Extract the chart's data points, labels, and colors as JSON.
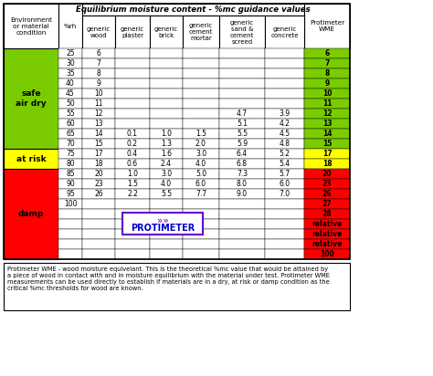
{
  "title": "Equilibrium moisture content - %mc guidance values",
  "col_headers_env": "Environment\nor material\ncondition",
  "col_headers_rh": "%rh",
  "col_headers_data": [
    "generic\nwood",
    "generic\nplaster",
    "generic\nbrick",
    "generic\ncement\nmortar",
    "generic\nsand &\ncement\nscreed",
    "generic\nconcrete",
    "Protimeter\nWME"
  ],
  "rows": [
    [
      "25",
      "6",
      "",
      "",
      "",
      "",
      "",
      "6"
    ],
    [
      "30",
      "7",
      "",
      "",
      "",
      "",
      "",
      "7"
    ],
    [
      "35",
      "8",
      "",
      "",
      "",
      "",
      "",
      "8"
    ],
    [
      "40",
      "9",
      "",
      "",
      "",
      "",
      "",
      "9"
    ],
    [
      "45",
      "10",
      "",
      "",
      "",
      "",
      "",
      "10"
    ],
    [
      "50",
      "11",
      "",
      "",
      "",
      "",
      "",
      "11"
    ],
    [
      "55",
      "12",
      "",
      "",
      "",
      "4.7",
      "3.9",
      "12"
    ],
    [
      "60",
      "13",
      "",
      "",
      "",
      "5.1",
      "4.2",
      "13"
    ],
    [
      "65",
      "14",
      "0.1",
      "1.0",
      "1.5",
      "5.5",
      "4.5",
      "14"
    ],
    [
      "70",
      "15",
      "0.2",
      "1.3",
      "2.0",
      "5.9",
      "4.8",
      "15"
    ],
    [
      "75",
      "17",
      "0.4",
      "1.6",
      "3.0",
      "6.4",
      "5.2",
      "17"
    ],
    [
      "80",
      "18",
      "0.6",
      "2.4",
      "4.0",
      "6.8",
      "5.4",
      "18"
    ],
    [
      "85",
      "20",
      "1.0",
      "3.0",
      "5.0",
      "7.3",
      "5.7",
      "20"
    ],
    [
      "90",
      "23",
      "1.5",
      "4.0",
      "6.0",
      "8.0",
      "6.0",
      "23"
    ],
    [
      "95",
      "26",
      "2.2",
      "5.5",
      "7.7",
      "9.0",
      "7.0",
      "26"
    ],
    [
      "100",
      "",
      "",
      "",
      "",
      "",
      "",
      "27"
    ],
    [
      "",
      "",
      "",
      "",
      "",
      "",
      "",
      "28"
    ],
    [
      "",
      "",
      "",
      "",
      "",
      "",
      "",
      "relative"
    ],
    [
      "",
      "",
      "",
      "",
      "",
      "",
      "",
      "relative"
    ],
    [
      "",
      "",
      "",
      "",
      "",
      "",
      "",
      "relative"
    ],
    [
      "",
      "",
      "",
      "",
      "",
      "",
      "",
      "100"
    ]
  ],
  "safe_rows": [
    0,
    1,
    2,
    3,
    4,
    5,
    6,
    7,
    8,
    9
  ],
  "at_risk_rows": [
    10,
    11
  ],
  "damp_rows": [
    12,
    13,
    14,
    15,
    16,
    17,
    18,
    19,
    20
  ],
  "green": "#7acc00",
  "yellow": "#ffff00",
  "red": "#ff0000",
  "footer": "Protimeter WME - wood moisture equivelant. This is the theoretical %mc value that would be attained by\na piece of wood in contact with and in moisture equilibrium with the material under test. Protimeter WME\nmeasurements can be used directly to establish if materials are in a dry, at risk or damp condition as the\ncritical %mc thresholds for wood are known.",
  "protimeter_color": "#6600cc",
  "protimeter_text_color": "#0000cc"
}
